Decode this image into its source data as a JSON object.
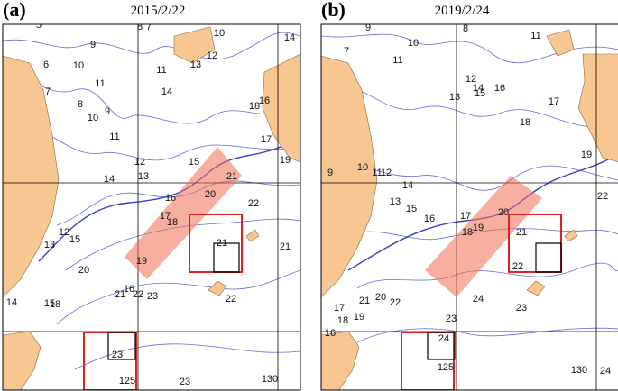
{
  "panels": [
    {
      "label": "(a)",
      "title": "2015/2/22",
      "contour_labels": [
        "5",
        "8",
        "7",
        "10",
        "9",
        "6",
        "10",
        "11",
        "12",
        "13",
        "14",
        "7",
        "11",
        "14",
        "8",
        "9",
        "10",
        "11",
        "18",
        "16",
        "17",
        "12",
        "15",
        "19",
        "21",
        "14",
        "13",
        "20",
        "16",
        "22",
        "17",
        "18",
        "12",
        "15",
        "13",
        "21",
        "21",
        "20",
        "19",
        "16",
        "21",
        "22",
        "23",
        "14",
        "15",
        "18",
        "22",
        "23",
        "125",
        "23",
        "130"
      ]
    },
    {
      "label": "(b)",
      "title": "2019/2/24",
      "contour_labels": [
        "9",
        "10",
        "8",
        "7",
        "11",
        "11",
        "12",
        "14",
        "15",
        "16",
        "13",
        "17",
        "18",
        "9",
        "10",
        "11",
        "12",
        "14",
        "13",
        "15",
        "16",
        "19",
        "17",
        "20",
        "18",
        "19",
        "21",
        "22",
        "22",
        "20",
        "21",
        "22",
        "24",
        "23",
        "17",
        "18",
        "19",
        "16",
        "23",
        "24",
        "125",
        "130",
        "24"
      ]
    }
  ]
}
